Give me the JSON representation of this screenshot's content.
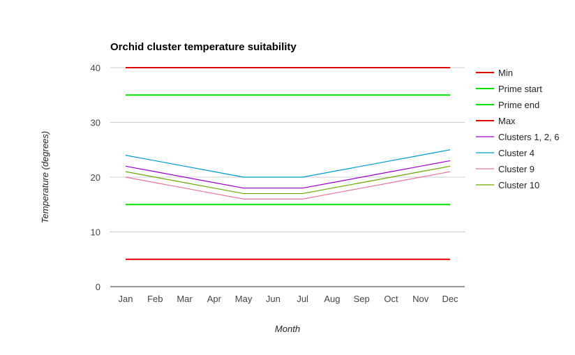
{
  "chart_data": {
    "type": "line",
    "title": "Orchid cluster temperature suitability",
    "xlabel": "Month",
    "ylabel": "Temperature (degrees)",
    "ylim": [
      0,
      40
    ],
    "yticks": [
      "0",
      "10",
      "20",
      "30",
      "40"
    ],
    "grid": true,
    "legend_position": "right",
    "categories": [
      "Jan",
      "Feb",
      "Mar",
      "Apr",
      "May",
      "Jun",
      "Jul",
      "Aug",
      "Sep",
      "Oct",
      "Nov",
      "Dec"
    ],
    "series": [
      {
        "name": "Min",
        "color": "#e00000",
        "values": [
          5,
          5,
          5,
          5,
          5,
          5,
          5,
          5,
          5,
          5,
          5,
          5
        ]
      },
      {
        "name": "Prime start",
        "color": "#00e000",
        "values": [
          15,
          15,
          15,
          15,
          15,
          15,
          15,
          15,
          15,
          15,
          15,
          15
        ]
      },
      {
        "name": "Prime end",
        "color": "#00e000",
        "values": [
          35,
          35,
          35,
          35,
          35,
          35,
          35,
          35,
          35,
          35,
          35,
          35
        ]
      },
      {
        "name": "Max",
        "color": "#e00000",
        "values": [
          40,
          40,
          40,
          40,
          40,
          40,
          40,
          40,
          40,
          40,
          40,
          40
        ]
      },
      {
        "name": "Clusters 1, 2, 6",
        "color": "#9900cc",
        "values": [
          22,
          21,
          20,
          19,
          18,
          18,
          18,
          19,
          20,
          21,
          22,
          23
        ]
      },
      {
        "name": "Cluster 4",
        "color": "#0099c6",
        "values": [
          24,
          23,
          22,
          21,
          20,
          20,
          20,
          21,
          22,
          23,
          24,
          25
        ]
      },
      {
        "name": "Cluster 9",
        "color": "#e67399",
        "values": [
          20,
          19,
          18,
          17,
          16,
          16,
          16,
          17,
          18,
          19,
          20,
          21
        ]
      },
      {
        "name": "Cluster 10",
        "color": "#66aa00",
        "values": [
          21,
          20,
          19,
          18,
          17,
          17,
          17,
          18,
          19,
          20,
          21,
          22
        ]
      }
    ],
    "legend_order": [
      "Min",
      "Prime start",
      "Prime end",
      "Max",
      "Clusters 1, 2, 6",
      "Cluster 4",
      "Cluster 9",
      "Cluster 10"
    ]
  }
}
